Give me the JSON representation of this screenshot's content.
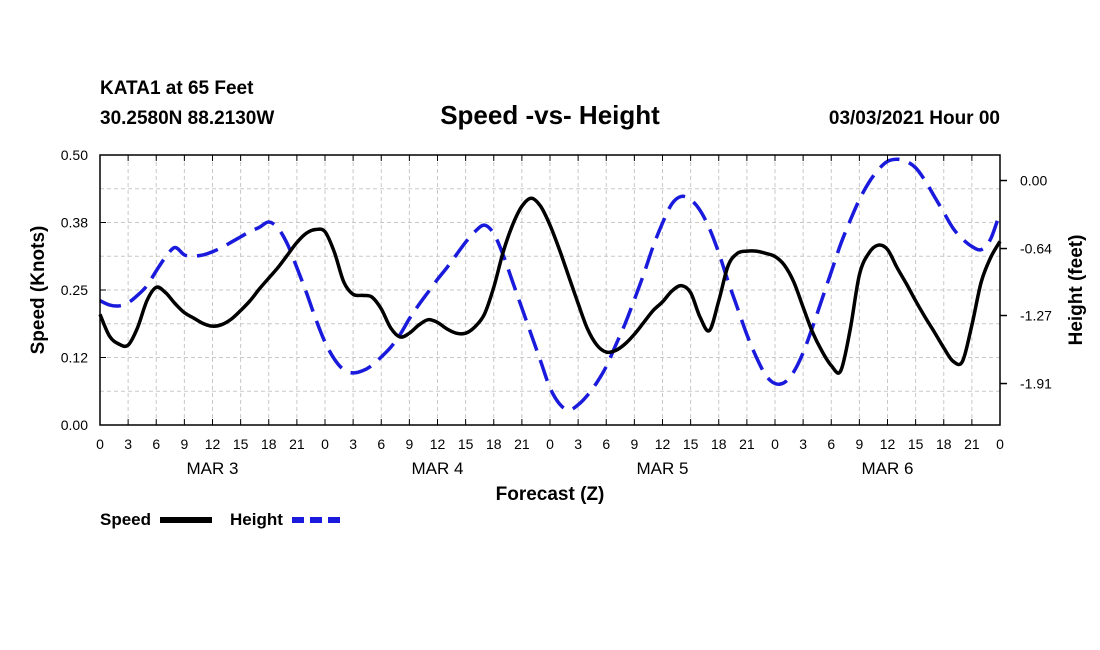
{
  "chart_data": {
    "type": "line",
    "title": "Speed -vs- Height",
    "station": "KATA1 at 65 Feet",
    "coords": "30.2580N 88.2130W",
    "date": "03/03/2021 Hour 00",
    "xlabel": "Forecast (Z)",
    "ylabel_left": "Speed (Knots)",
    "ylabel_right": "Height (feet)",
    "x_range": [
      0,
      96
    ],
    "y_left_range": [
      0,
      0.5
    ],
    "y_right_range": [
      -2.3,
      0.24
    ],
    "x_ticks": [
      {
        "x": 0,
        "label": "0"
      },
      {
        "x": 3,
        "label": "3"
      },
      {
        "x": 6,
        "label": "6"
      },
      {
        "x": 9,
        "label": "9"
      },
      {
        "x": 12,
        "label": "12"
      },
      {
        "x": 15,
        "label": "15"
      },
      {
        "x": 18,
        "label": "18"
      },
      {
        "x": 21,
        "label": "21"
      },
      {
        "x": 24,
        "label": "0"
      },
      {
        "x": 27,
        "label": "3"
      },
      {
        "x": 30,
        "label": "6"
      },
      {
        "x": 33,
        "label": "9"
      },
      {
        "x": 36,
        "label": "12"
      },
      {
        "x": 39,
        "label": "15"
      },
      {
        "x": 42,
        "label": "18"
      },
      {
        "x": 45,
        "label": "21"
      },
      {
        "x": 48,
        "label": "0"
      },
      {
        "x": 51,
        "label": "3"
      },
      {
        "x": 54,
        "label": "6"
      },
      {
        "x": 57,
        "label": "9"
      },
      {
        "x": 60,
        "label": "12"
      },
      {
        "x": 63,
        "label": "15"
      },
      {
        "x": 66,
        "label": "18"
      },
      {
        "x": 69,
        "label": "21"
      },
      {
        "x": 72,
        "label": "0"
      },
      {
        "x": 75,
        "label": "3"
      },
      {
        "x": 78,
        "label": "6"
      },
      {
        "x": 81,
        "label": "9"
      },
      {
        "x": 84,
        "label": "12"
      },
      {
        "x": 87,
        "label": "15"
      },
      {
        "x": 90,
        "label": "18"
      },
      {
        "x": 93,
        "label": "21"
      },
      {
        "x": 96,
        "label": "0"
      }
    ],
    "day_labels": [
      {
        "x": 12,
        "label": "MAR 3"
      },
      {
        "x": 36,
        "label": "MAR 4"
      },
      {
        "x": 60,
        "label": "MAR 5"
      },
      {
        "x": 84,
        "label": "MAR 6"
      }
    ],
    "y_left_ticks": [
      {
        "value": 0.0,
        "label": "0.00"
      },
      {
        "value": 0.125,
        "label": "0.12"
      },
      {
        "value": 0.25,
        "label": "0.25"
      },
      {
        "value": 0.375,
        "label": "0.38"
      },
      {
        "value": 0.5,
        "label": "0.50"
      }
    ],
    "y_right_ticks": [
      {
        "value": 0.0,
        "label": "0.00"
      },
      {
        "value": -0.64,
        "label": "-0.64"
      },
      {
        "value": -1.27,
        "label": "-1.27"
      },
      {
        "value": -1.91,
        "label": "-1.91"
      }
    ],
    "series": [
      {
        "name": "Speed",
        "axis": "left",
        "color": "#000000",
        "dash": "solid",
        "x": [
          0,
          1,
          2,
          3,
          4,
          5,
          6,
          7,
          8,
          9,
          10,
          11,
          12,
          13,
          14,
          15,
          16,
          17,
          18,
          19,
          20,
          21,
          22,
          23,
          24,
          25,
          26,
          27,
          28,
          29,
          30,
          31,
          32,
          33,
          34,
          35,
          36,
          37,
          38,
          39,
          40,
          41,
          42,
          43,
          44,
          45,
          46,
          47,
          48,
          49,
          50,
          51,
          52,
          53,
          54,
          55,
          56,
          57,
          58,
          59,
          60,
          61,
          62,
          63,
          64,
          65,
          66,
          67,
          68,
          69,
          70,
          71,
          72,
          73,
          74,
          75,
          76,
          77,
          78,
          79,
          80,
          81,
          82,
          83,
          84,
          85,
          86,
          87,
          88,
          89,
          90,
          91,
          92,
          93,
          94,
          95,
          96
        ],
        "values": [
          0.205,
          0.165,
          0.15,
          0.148,
          0.18,
          0.23,
          0.255,
          0.245,
          0.225,
          0.208,
          0.198,
          0.188,
          0.183,
          0.186,
          0.196,
          0.212,
          0.23,
          0.252,
          0.272,
          0.292,
          0.315,
          0.338,
          0.355,
          0.362,
          0.358,
          0.32,
          0.265,
          0.242,
          0.24,
          0.237,
          0.215,
          0.18,
          0.163,
          0.17,
          0.185,
          0.195,
          0.19,
          0.178,
          0.17,
          0.17,
          0.182,
          0.205,
          0.255,
          0.32,
          0.37,
          0.405,
          0.42,
          0.405,
          0.37,
          0.325,
          0.275,
          0.225,
          0.178,
          0.148,
          0.135,
          0.138,
          0.15,
          0.168,
          0.19,
          0.212,
          0.228,
          0.248,
          0.258,
          0.245,
          0.2,
          0.175,
          0.23,
          0.295,
          0.318,
          0.322,
          0.322,
          0.318,
          0.312,
          0.296,
          0.265,
          0.218,
          0.172,
          0.137,
          0.11,
          0.1,
          0.175,
          0.278,
          0.318,
          0.333,
          0.325,
          0.292,
          0.262,
          0.23,
          0.2,
          0.172,
          0.143,
          0.118,
          0.118,
          0.185,
          0.265,
          0.31,
          0.34
        ]
      },
      {
        "name": "Height",
        "axis": "right",
        "color": "#1a1adc",
        "dash": "dashed",
        "x": [
          0,
          1,
          2,
          3,
          4,
          5,
          6,
          7,
          8,
          9,
          10,
          11,
          12,
          13,
          14,
          15,
          16,
          17,
          18,
          19,
          20,
          21,
          22,
          23,
          24,
          25,
          26,
          27,
          28,
          29,
          30,
          31,
          32,
          33,
          34,
          35,
          36,
          37,
          38,
          39,
          40,
          41,
          42,
          43,
          44,
          45,
          46,
          47,
          48,
          49,
          50,
          51,
          52,
          53,
          54,
          55,
          56,
          57,
          58,
          59,
          60,
          61,
          62,
          63,
          64,
          65,
          66,
          67,
          68,
          69,
          70,
          71,
          72,
          73,
          74,
          75,
          76,
          77,
          78,
          79,
          80,
          81,
          82,
          83,
          84,
          85,
          86,
          87,
          88,
          89,
          90,
          91,
          92,
          93,
          94,
          95,
          96
        ],
        "values": [
          -1.13,
          -1.17,
          -1.18,
          -1.15,
          -1.08,
          -0.99,
          -0.85,
          -0.72,
          -0.63,
          -0.7,
          -0.71,
          -0.7,
          -0.67,
          -0.63,
          -0.58,
          -0.53,
          -0.48,
          -0.44,
          -0.39,
          -0.45,
          -0.6,
          -0.82,
          -1.05,
          -1.3,
          -1.52,
          -1.68,
          -1.78,
          -1.81,
          -1.79,
          -1.74,
          -1.66,
          -1.57,
          -1.45,
          -1.3,
          -1.17,
          -1.05,
          -0.93,
          -0.82,
          -0.7,
          -0.58,
          -0.48,
          -0.42,
          -0.5,
          -0.7,
          -0.95,
          -1.2,
          -1.45,
          -1.7,
          -1.95,
          -2.1,
          -2.16,
          -2.11,
          -2.02,
          -1.9,
          -1.75,
          -1.55,
          -1.35,
          -1.12,
          -0.88,
          -0.62,
          -0.4,
          -0.22,
          -0.15,
          -0.18,
          -0.28,
          -0.45,
          -0.68,
          -0.95,
          -1.2,
          -1.45,
          -1.66,
          -1.83,
          -1.91,
          -1.9,
          -1.8,
          -1.62,
          -1.38,
          -1.12,
          -0.86,
          -0.6,
          -0.38,
          -0.18,
          -0.02,
          0.1,
          0.18,
          0.2,
          0.18,
          0.12,
          0.0,
          -0.15,
          -0.3,
          -0.45,
          -0.55,
          -0.62,
          -0.65,
          -0.55,
          -0.3
        ]
      }
    ],
    "legend": [
      {
        "label": "Speed",
        "color": "#000000",
        "dash": "solid"
      },
      {
        "label": "Height",
        "color": "#1a1adc",
        "dash": "dashed"
      }
    ],
    "grid": true
  }
}
